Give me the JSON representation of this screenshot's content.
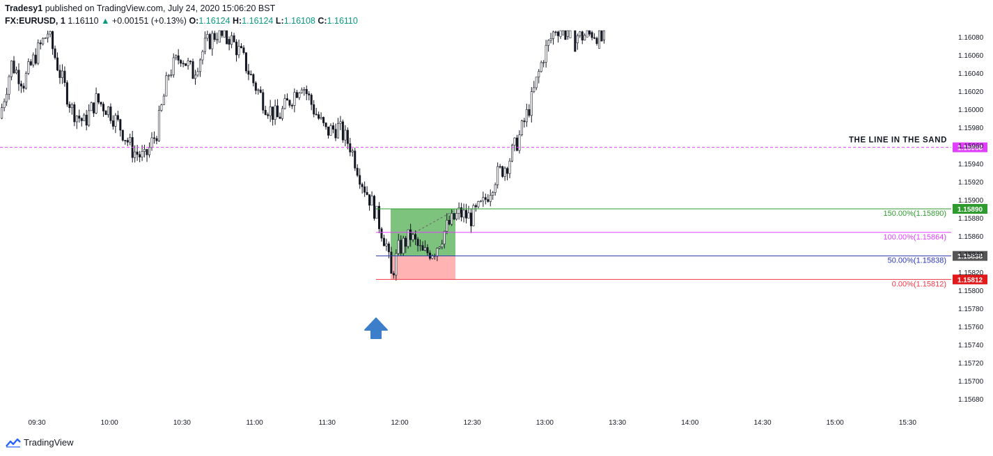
{
  "header": {
    "publisher": "Tradesy1",
    "published_text": " published on TradingView.com, July 24, 2020 15:06:20 BST",
    "symbol": "FX:EURUSD, 1",
    "last": "1.16110",
    "change": "+0.00151 (+0.13%)",
    "o_label": "O:",
    "o_val": "1.16124",
    "h_label": "H:",
    "h_val": "1.16124",
    "l_label": "L:",
    "l_val": "1.16108",
    "c_label": "C:",
    "c_val": "1.16110"
  },
  "brand": {
    "name": "TradingView"
  },
  "colors": {
    "up": "#131722",
    "down": "#131722",
    "level_line": "#e040fb",
    "fib150": "#2e9b2e",
    "fib100": "#e040fb",
    "fib50": "#2a36b1",
    "fib0": "#f23645",
    "arrow": "#3c7ec9",
    "green_box": "#7dc27d",
    "red_box": "#ffb3b3"
  },
  "chart_data": {
    "type": "candlestick",
    "title": "",
    "ylim": [
      1.15668,
      1.16096
    ],
    "y_ticks": [
      "1.16080",
      "1.16060",
      "1.16040",
      "1.16020",
      "1.16000",
      "1.15980",
      "1.15960",
      "1.15940",
      "1.15920",
      "1.15900",
      "1.15880",
      "1.15860",
      "1.15840",
      "1.15820",
      "1.15800",
      "1.15780",
      "1.15760",
      "1.15740",
      "1.15720",
      "1.15700",
      "1.15680"
    ],
    "x_ticks": [
      "09:30",
      "10:00",
      "10:30",
      "11:00",
      "11:30",
      "12:00",
      "12:30",
      "13:00",
      "13:30",
      "14:00",
      "14:30",
      "15:00",
      "15:30"
    ],
    "close_path": [
      [
        "09:15",
        1.1599
      ],
      [
        "09:20",
        1.1605
      ],
      [
        "09:25",
        1.1603
      ],
      [
        "09:30",
        1.1606
      ],
      [
        "09:35",
        1.16085
      ],
      [
        "09:40",
        1.1604
      ],
      [
        "09:45",
        1.16
      ],
      [
        "09:50",
        1.15985
      ],
      [
        "09:55",
        1.1601
      ],
      [
        "10:00",
        1.16
      ],
      [
        "10:05",
        1.1598
      ],
      [
        "10:10",
        1.15955
      ],
      [
        "10:15",
        1.15945
      ],
      [
        "10:20",
        1.15975
      ],
      [
        "10:25",
        1.1604
      ],
      [
        "10:30",
        1.1606
      ],
      [
        "10:35",
        1.1604
      ],
      [
        "10:40",
        1.1607
      ],
      [
        "10:45",
        1.16085
      ],
      [
        "10:50",
        1.1608
      ],
      [
        "10:55",
        1.1606
      ],
      [
        "11:00",
        1.1603
      ],
      [
        "11:05",
        1.16005
      ],
      [
        "11:10",
        1.1599
      ],
      [
        "11:15",
        1.1601
      ],
      [
        "11:20",
        1.1603
      ],
      [
        "11:25",
        1.16
      ],
      [
        "11:30",
        1.15975
      ],
      [
        "11:35",
        1.1598
      ],
      [
        "11:40",
        1.1596
      ],
      [
        "11:45",
        1.1592
      ],
      [
        "11:50",
        1.1589
      ],
      [
        "11:55",
        1.1585
      ],
      [
        "11:57",
        1.15815
      ],
      [
        "12:00",
        1.15845
      ],
      [
        "12:05",
        1.1586
      ],
      [
        "12:10",
        1.1584
      ],
      [
        "12:15",
        1.15845
      ],
      [
        "12:20",
        1.1587
      ],
      [
        "12:25",
        1.15885
      ],
      [
        "12:30",
        1.1588
      ],
      [
        "12:35",
        1.15895
      ],
      [
        "12:40",
        1.15925
      ],
      [
        "12:45",
        1.1594
      ],
      [
        "12:50",
        1.1597
      ],
      [
        "12:55",
        1.1601
      ],
      [
        "13:00",
        1.1606
      ],
      [
        "13:05",
        1.1609
      ],
      [
        "13:10",
        1.1609
      ],
      [
        "13:15",
        1.1608
      ],
      [
        "13:20",
        1.16085
      ],
      [
        "13:25",
        1.1608
      ]
    ],
    "levels": [
      {
        "name": "THE LINE IN THE SAND",
        "price_label": "1.15958",
        "value": 1.15958,
        "style": "dashed"
      }
    ],
    "fib_levels": [
      {
        "label": "150.00%(1.15890)",
        "price_label": "1.15890",
        "value": 1.1589
      },
      {
        "label": "100.00%(1.15864)",
        "value": 1.15864
      },
      {
        "label": "50.00%(1.15838)",
        "price_label": "1.15838",
        "value": 1.15838
      },
      {
        "label": "0.00%(1.15812)",
        "price_label": "1.15812",
        "value": 1.15812
      }
    ]
  }
}
